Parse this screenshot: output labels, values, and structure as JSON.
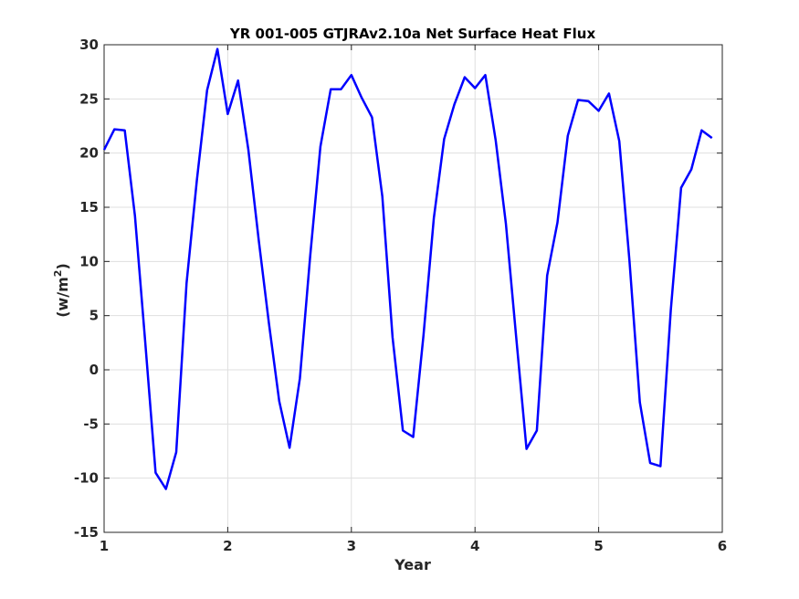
{
  "chart_data": {
    "type": "line",
    "title": "YR 001-005 GTJRAv2.10a Net Surface Heat Flux",
    "xlabel": "Year",
    "ylabel_main": "(w/m",
    "ylabel_sup": "2",
    "ylabel_close": ")",
    "xlim": [
      1,
      6
    ],
    "ylim": [
      -15,
      30
    ],
    "xticks": [
      1,
      2,
      3,
      4,
      5,
      6
    ],
    "yticks": [
      -15,
      -10,
      -5,
      0,
      5,
      10,
      15,
      20,
      25,
      30
    ],
    "grid": true,
    "line_color": "#0000ff",
    "series": [
      {
        "x": [
          1.0,
          1.0833,
          1.1667,
          1.25,
          1.3333,
          1.4167,
          1.5,
          1.5833,
          1.6667,
          1.75,
          1.8333,
          1.9167,
          2.0,
          2.0833,
          2.1667,
          2.25,
          2.3333,
          2.4167,
          2.5,
          2.5833,
          2.6667,
          2.75,
          2.8333,
          2.9167,
          3.0,
          3.0833,
          3.1667,
          3.25,
          3.3333,
          3.4167,
          3.5,
          3.5833,
          3.6667,
          3.75,
          3.8333,
          3.9167,
          4.0,
          4.0833,
          4.1667,
          4.25,
          4.3333,
          4.4167,
          4.5,
          4.5833,
          4.6667,
          4.75,
          4.8333,
          4.9167,
          5.0,
          5.0833,
          5.1667,
          5.25,
          5.3333,
          5.4167,
          5.5,
          5.5833,
          5.6667,
          5.75,
          5.8333,
          5.9167
        ],
        "values": [
          20.3,
          22.2,
          22.1,
          14.2,
          2.5,
          -9.5,
          -11.0,
          -7.6,
          8.0,
          17.5,
          25.8,
          29.6,
          23.6,
          26.7,
          20.3,
          12.0,
          4.3,
          -2.9,
          -7.2,
          -0.8,
          10.5,
          20.6,
          25.9,
          25.9,
          27.2,
          25.1,
          23.3,
          16.0,
          3.0,
          -5.6,
          -6.2,
          3.2,
          14.0,
          21.3,
          24.5,
          27.0,
          26.0,
          27.2,
          21.2,
          13.5,
          3.0,
          -7.3,
          -5.6,
          8.7,
          13.6,
          21.6,
          24.9,
          24.8,
          23.9,
          25.5,
          21.1,
          10.0,
          -3.0,
          -8.6,
          -8.9,
          5.5,
          16.8,
          18.5,
          22.1,
          21.4
        ]
      }
    ]
  }
}
